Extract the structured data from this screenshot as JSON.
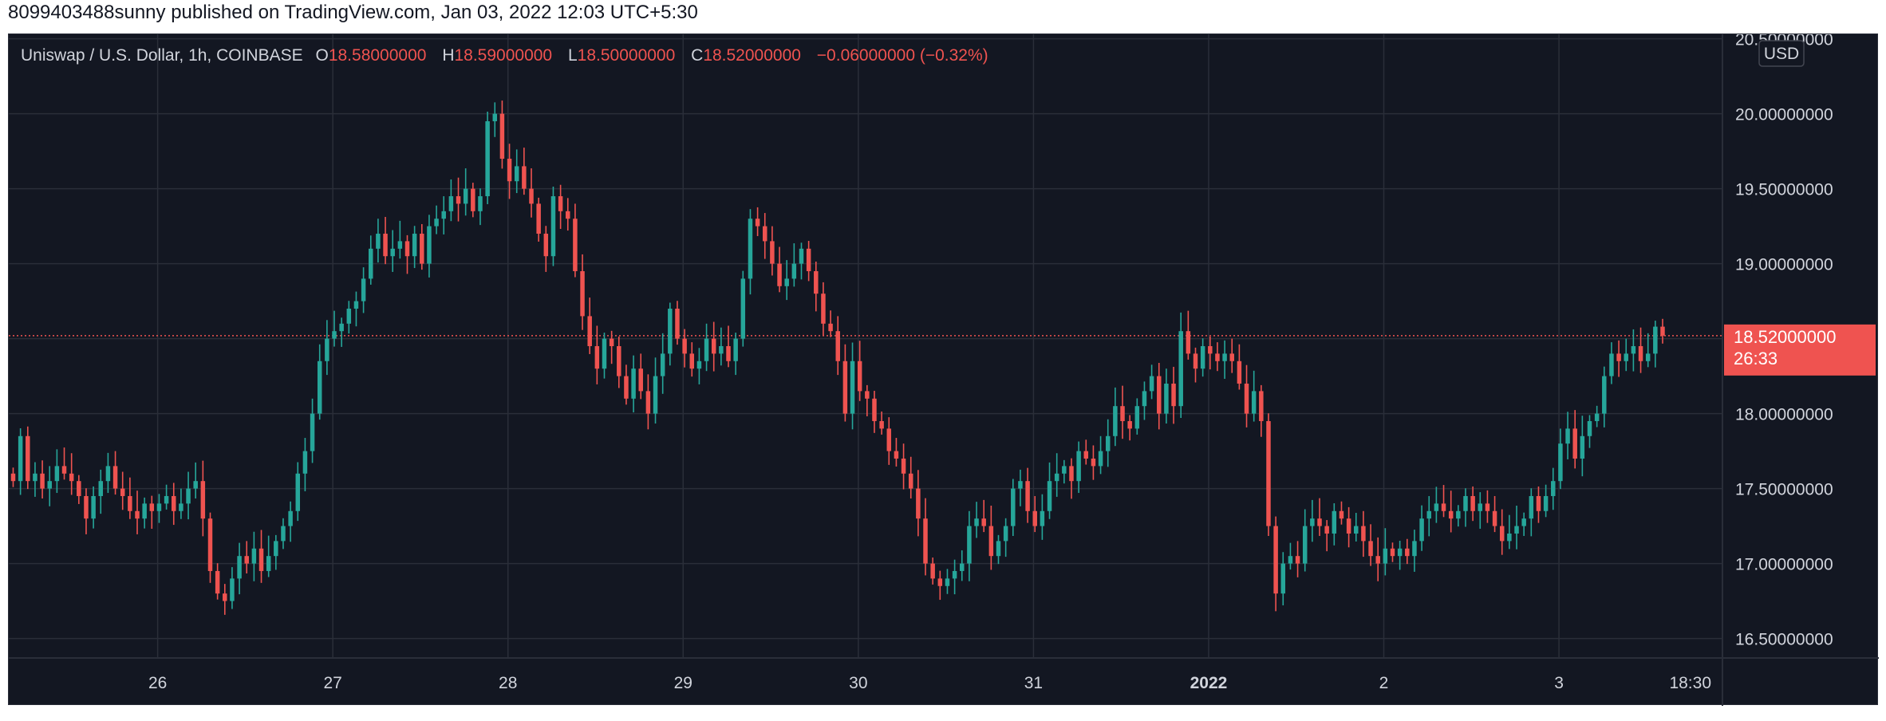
{
  "attribution": "8099403488sunny published on TradingView.com, Jan 03, 2022 12:03 UTC+5:30",
  "legend": {
    "symbol": "Uniswap / U.S. Dollar, 1h, COINBASE",
    "o_key": "O",
    "o_val": "18.58000000",
    "h_key": "H",
    "h_val": "18.59000000",
    "l_key": "L",
    "l_val": "18.50000000",
    "c_key": "C",
    "c_val": "18.52000000",
    "change": "−0.06000000 (−0.32%)"
  },
  "currency": "USD",
  "last_price_label": "18.52000000",
  "countdown_label": "26:33",
  "colors": {
    "background": "#131722",
    "up": "#26a69a",
    "down": "#ef5350",
    "grid": "#2a2e39",
    "text": "#d1d4dc"
  },
  "chart_data": {
    "type": "candlestick",
    "title": "Uniswap / U.S. Dollar, 1h, COINBASE",
    "ylim": [
      16.37,
      20.53
    ],
    "y_ticks": [
      "16.50000000",
      "17.00000000",
      "17.50000000",
      "18.00000000",
      "18.50000000",
      "19.00000000",
      "19.50000000",
      "20.00000000",
      "20.50000000"
    ],
    "x_ticks": [
      {
        "label": "26",
        "hour": 48,
        "bold": false
      },
      {
        "label": "27",
        "hour": 72,
        "bold": false
      },
      {
        "label": "28",
        "hour": 96,
        "bold": false
      },
      {
        "label": "29",
        "hour": 120,
        "bold": false
      },
      {
        "label": "30",
        "hour": 144,
        "bold": false
      },
      {
        "label": "31",
        "hour": 168,
        "bold": false
      },
      {
        "label": "2022",
        "hour": 192,
        "bold": true
      },
      {
        "label": "2",
        "hour": 216,
        "bold": false
      },
      {
        "label": "3",
        "hour": 240,
        "bold": false
      },
      {
        "label": "18:30",
        "hour": 258,
        "bold": false
      }
    ],
    "x_start_hour": 27.6,
    "x_end_hour": 262.4,
    "last_price": 18.52,
    "candles_hourly_from_Dec25_03h_close": [
      17.55,
      17.85,
      17.55,
      17.6,
      17.5,
      17.55,
      17.65,
      17.6,
      17.55,
      17.45,
      17.3,
      17.45,
      17.55,
      17.65,
      17.5,
      17.45,
      17.35,
      17.3,
      17.4,
      17.35,
      17.4,
      17.45,
      17.35,
      17.4,
      17.5,
      17.55,
      17.3,
      16.95,
      16.8,
      16.75,
      16.9,
      17.05,
      17.0,
      17.1,
      16.95,
      17.05,
      17.15,
      17.25,
      17.35,
      17.6,
      17.75,
      18.0,
      18.35,
      18.5,
      18.55,
      18.6,
      18.7,
      18.75,
      18.9,
      19.1,
      19.2,
      19.05,
      19.1,
      19.15,
      19.05,
      19.2,
      19.0,
      19.25,
      19.3,
      19.35,
      19.45,
      19.4,
      19.5,
      19.35,
      19.45,
      19.95,
      20.0,
      19.7,
      19.55,
      19.65,
      19.5,
      19.4,
      19.2,
      19.05,
      19.45,
      19.35,
      19.3,
      18.95,
      18.65,
      18.45,
      18.3,
      18.5,
      18.45,
      18.25,
      18.1,
      18.3,
      18.15,
      18.0,
      18.25,
      18.4,
      18.7,
      18.5,
      18.4,
      18.3,
      18.35,
      18.5,
      18.4,
      18.45,
      18.35,
      18.5,
      18.9,
      19.3,
      19.25,
      19.15,
      19.0,
      18.85,
      18.9,
      19.0,
      19.1,
      18.95,
      18.8,
      18.6,
      18.55,
      18.35,
      18.0,
      18.35,
      18.15,
      18.1,
      17.95,
      17.9,
      17.75,
      17.7,
      17.6,
      17.5,
      17.3,
      17.0,
      16.9,
      16.85,
      16.9,
      16.95,
      17.0,
      17.25,
      17.3,
      17.25,
      17.05,
      17.15,
      17.25,
      17.5,
      17.55,
      17.35,
      17.25,
      17.35,
      17.55,
      17.6,
      17.65,
      17.55,
      17.75,
      17.7,
      17.65,
      17.75,
      17.85,
      18.05,
      17.95,
      17.9,
      18.05,
      18.15,
      18.25,
      18.0,
      18.2,
      18.05,
      18.55,
      18.4,
      18.3,
      18.45,
      18.4,
      18.35,
      18.4,
      18.35,
      18.2,
      18.0,
      18.15,
      17.95,
      17.25,
      16.8,
      17.0,
      17.05,
      17.0,
      17.25,
      17.3,
      17.25,
      17.2,
      17.35,
      17.3,
      17.2,
      17.25,
      17.15,
      17.05,
      17.0,
      17.1,
      17.05,
      17.1,
      17.05,
      17.15,
      17.3,
      17.35,
      17.4,
      17.35,
      17.3,
      17.35,
      17.45,
      17.35,
      17.4,
      17.35,
      17.25,
      17.15,
      17.2,
      17.25,
      17.3,
      17.45,
      17.35,
      17.45,
      17.55,
      17.8,
      17.9,
      17.7,
      17.85,
      17.95,
      18.0,
      18.25,
      18.4,
      18.35,
      18.4,
      18.45,
      18.35,
      18.4,
      18.58,
      18.52
    ]
  }
}
